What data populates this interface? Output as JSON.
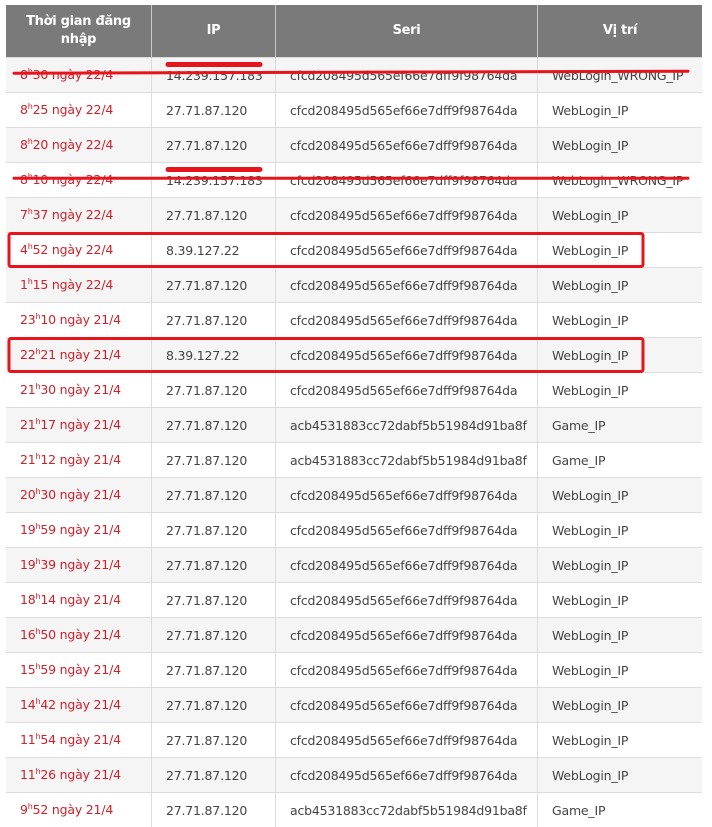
{
  "headers": [
    "Thời gian đăng nhập",
    "IP",
    "Seri",
    "Vị trí"
  ],
  "rows": [
    {
      "h": "8",
      "m": "30 ngày 22/4",
      "ip": "14.239.157.183",
      "seri": "cfcd208495d565ef66e7dff9f98764da",
      "loc": "WebLogin_WRONG_IP",
      "struck": true
    },
    {
      "h": "8",
      "m": "25 ngày 22/4",
      "ip": "27.71.87.120",
      "seri": "cfcd208495d565ef66e7dff9f98764da",
      "loc": "WebLogin_IP"
    },
    {
      "h": "8",
      "m": "20 ngày 22/4",
      "ip": "27.71.87.120",
      "seri": "cfcd208495d565ef66e7dff9f98764da",
      "loc": "WebLogin_IP"
    },
    {
      "h": "8",
      "m": "10 ngày 22/4",
      "ip": "14.239.157.183",
      "seri": "cfcd208495d565ef66e7dff9f98764da",
      "loc": "WebLogin_WRONG_IP",
      "struck": true
    },
    {
      "h": "7",
      "m": "37 ngày 22/4",
      "ip": "27.71.87.120",
      "seri": "cfcd208495d565ef66e7dff9f98764da",
      "loc": "WebLogin_IP"
    },
    {
      "h": "4",
      "m": "52 ngày 22/4",
      "ip": "8.39.127.22",
      "seri": "cfcd208495d565ef66e7dff9f98764da",
      "loc": "WebLogin_IP",
      "boxed": true
    },
    {
      "h": "1",
      "m": "15 ngày 22/4",
      "ip": "27.71.87.120",
      "seri": "cfcd208495d565ef66e7dff9f98764da",
      "loc": "WebLogin_IP"
    },
    {
      "h": "23",
      "m": "10 ngày 21/4",
      "ip": "27.71.87.120",
      "seri": "cfcd208495d565ef66e7dff9f98764da",
      "loc": "WebLogin_IP"
    },
    {
      "h": "22",
      "m": "21 ngày 21/4",
      "ip": "8.39.127.22",
      "seri": "cfcd208495d565ef66e7dff9f98764da",
      "loc": "WebLogin_IP",
      "boxed": true
    },
    {
      "h": "21",
      "m": "30 ngày 21/4",
      "ip": "27.71.87.120",
      "seri": "cfcd208495d565ef66e7dff9f98764da",
      "loc": "WebLogin_IP"
    },
    {
      "h": "21",
      "m": "17 ngày 21/4",
      "ip": "27.71.87.120",
      "seri": "acb4531883cc72dabf5b51984d91ba8f",
      "loc": "Game_IP"
    },
    {
      "h": "21",
      "m": "12 ngày 21/4",
      "ip": "27.71.87.120",
      "seri": "acb4531883cc72dabf5b51984d91ba8f",
      "loc": "Game_IP"
    },
    {
      "h": "20",
      "m": "30 ngày 21/4",
      "ip": "27.71.87.120",
      "seri": "cfcd208495d565ef66e7dff9f98764da",
      "loc": "WebLogin_IP"
    },
    {
      "h": "19",
      "m": "59 ngày 21/4",
      "ip": "27.71.87.120",
      "seri": "cfcd208495d565ef66e7dff9f98764da",
      "loc": "WebLogin_IP"
    },
    {
      "h": "19",
      "m": "39 ngày 21/4",
      "ip": "27.71.87.120",
      "seri": "cfcd208495d565ef66e7dff9f98764da",
      "loc": "WebLogin_IP"
    },
    {
      "h": "18",
      "m": "14 ngày 21/4",
      "ip": "27.71.87.120",
      "seri": "cfcd208495d565ef66e7dff9f98764da",
      "loc": "WebLogin_IP"
    },
    {
      "h": "16",
      "m": "50 ngày 21/4",
      "ip": "27.71.87.120",
      "seri": "cfcd208495d565ef66e7dff9f98764da",
      "loc": "WebLogin_IP"
    },
    {
      "h": "15",
      "m": "59 ngày 21/4",
      "ip": "27.71.87.120",
      "seri": "cfcd208495d565ef66e7dff9f98764da",
      "loc": "WebLogin_IP"
    },
    {
      "h": "14",
      "m": "42 ngày 21/4",
      "ip": "27.71.87.120",
      "seri": "cfcd208495d565ef66e7dff9f98764da",
      "loc": "WebLogin_IP"
    },
    {
      "h": "11",
      "m": "54 ngày 21/4",
      "ip": "27.71.87.120",
      "seri": "cfcd208495d565ef66e7dff9f98764da",
      "loc": "WebLogin_IP"
    },
    {
      "h": "11",
      "m": "26 ngày 21/4",
      "ip": "27.71.87.120",
      "seri": "cfcd208495d565ef66e7dff9f98764da",
      "loc": "WebLogin_IP"
    },
    {
      "h": "9",
      "m": "52 ngày 21/4",
      "ip": "27.71.87.120",
      "seri": "acb4531883cc72dabf5b51984d91ba8f",
      "loc": "Game_IP"
    }
  ],
  "hour_suffix": "h",
  "colors": {
    "header_bg": "#7a7a7a",
    "time_text": "#d0202a",
    "annotation": "#e8141c"
  }
}
